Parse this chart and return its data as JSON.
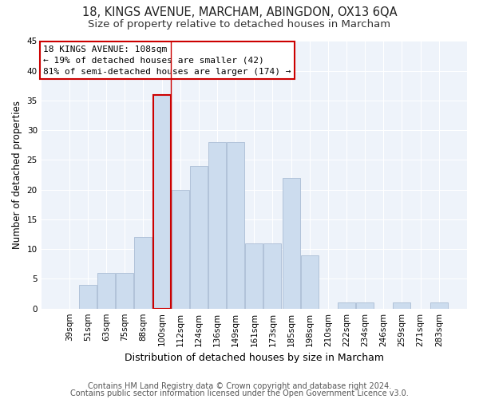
{
  "title1": "18, KINGS AVENUE, MARCHAM, ABINGDON, OX13 6QA",
  "title2": "Size of property relative to detached houses in Marcham",
  "xlabel": "Distribution of detached houses by size in Marcham",
  "ylabel": "Number of detached properties",
  "categories": [
    "39sqm",
    "51sqm",
    "63sqm",
    "75sqm",
    "88sqm",
    "100sqm",
    "112sqm",
    "124sqm",
    "136sqm",
    "149sqm",
    "161sqm",
    "173sqm",
    "185sqm",
    "198sqm",
    "210sqm",
    "222sqm",
    "234sqm",
    "246sqm",
    "259sqm",
    "271sqm",
    "283sqm"
  ],
  "values": [
    0,
    4,
    6,
    6,
    12,
    36,
    20,
    24,
    28,
    28,
    11,
    11,
    22,
    9,
    0,
    1,
    1,
    0,
    1,
    0,
    1
  ],
  "bar_color": "#ccdcee",
  "bar_edge_color": "#aabdd4",
  "highlight_bar_index": 5,
  "highlight_bar_edge_color": "#cc0000",
  "vline_color": "#cc0000",
  "annotation_text": "18 KINGS AVENUE: 108sqm\n← 19% of detached houses are smaller (42)\n81% of semi-detached houses are larger (174) →",
  "annotation_box_color": "#ffffff",
  "annotation_box_edge_color": "#cc0000",
  "footer1": "Contains HM Land Registry data © Crown copyright and database right 2024.",
  "footer2": "Contains public sector information licensed under the Open Government Licence v3.0.",
  "ylim": [
    0,
    45
  ],
  "yticks": [
    0,
    5,
    10,
    15,
    20,
    25,
    30,
    35,
    40,
    45
  ],
  "background_color": "#eef3fa",
  "grid_color": "#ffffff",
  "title1_fontsize": 10.5,
  "title2_fontsize": 9.5,
  "xlabel_fontsize": 9,
  "ylabel_fontsize": 8.5,
  "tick_fontsize": 7.5,
  "annotation_fontsize": 8,
  "footer_fontsize": 7
}
